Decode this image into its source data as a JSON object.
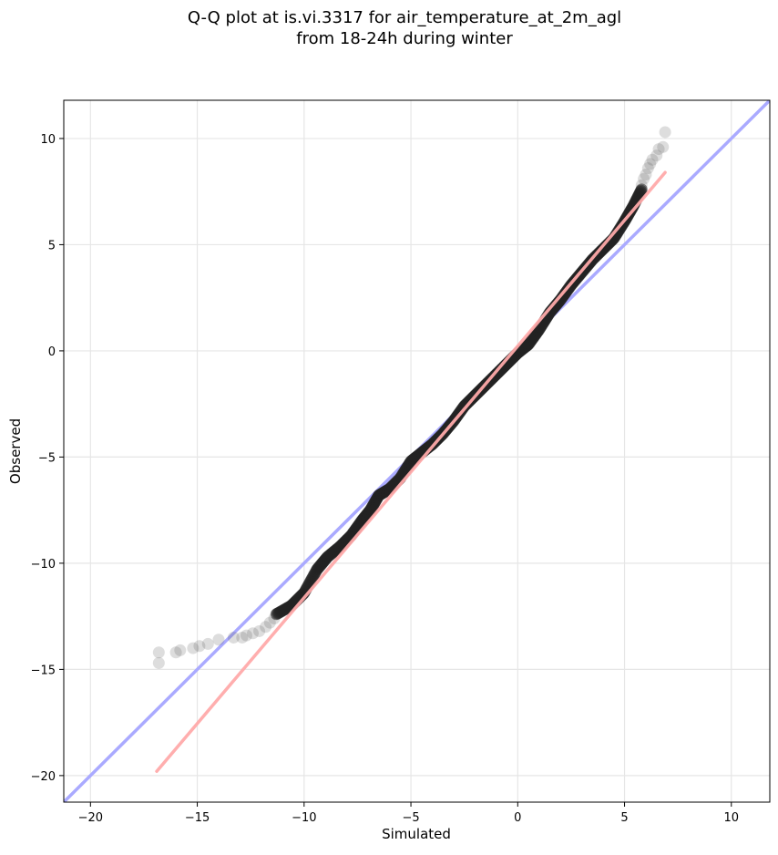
{
  "chart_data": {
    "type": "scatter",
    "title_line1": "Q-Q plot at is.vi.3317 for air_temperature_at_2m_agl",
    "title_line2": "from 18-24h during winter",
    "xlabel": "Simulated",
    "ylabel": "Observed",
    "xlim": [
      -21.25,
      11.8
    ],
    "ylim": [
      -21.25,
      11.8
    ],
    "xticks": [
      {
        "value": -20,
        "label": "−20"
      },
      {
        "value": -15,
        "label": "−15"
      },
      {
        "value": -10,
        "label": "−10"
      },
      {
        "value": -5,
        "label": "−5"
      },
      {
        "value": 0,
        "label": "0"
      },
      {
        "value": 5,
        "label": "5"
      },
      {
        "value": 10,
        "label": "10"
      }
    ],
    "yticks": [
      {
        "value": 10,
        "label": "10"
      },
      {
        "value": 5,
        "label": "5"
      },
      {
        "value": 0,
        "label": "0"
      },
      {
        "value": -5,
        "label": "−5"
      },
      {
        "value": -10,
        "label": "−10"
      },
      {
        "value": -15,
        "label": "−15"
      },
      {
        "value": -20,
        "label": "−20"
      }
    ],
    "grid": true,
    "identity_line": {
      "from": [
        -21.25,
        -21.25
      ],
      "to": [
        11.8,
        11.8
      ],
      "color": "#aaaaff"
    },
    "fit_line": {
      "from": [
        -16.9,
        -19.8
      ],
      "to": [
        6.9,
        8.4
      ],
      "color": "#ffaaaa"
    },
    "point_color": "#555555",
    "sparse_points": {
      "x": [
        6.9,
        6.8,
        6.6,
        6.5,
        6.3,
        6.2,
        6.1,
        6.0,
        5.9,
        5.8,
        -11.4,
        -11.6,
        -11.8,
        -12.1,
        -12.4,
        -12.7,
        -12.9,
        -13.3,
        -14.0,
        -14.5,
        -14.9,
        -15.2,
        -15.8,
        -16.0,
        -16.8,
        -16.8
      ],
      "y": [
        10.3,
        9.6,
        9.5,
        9.2,
        9.0,
        8.8,
        8.6,
        8.3,
        8.1,
        7.8,
        -12.6,
        -12.8,
        -13.0,
        -13.2,
        -13.3,
        -13.4,
        -13.5,
        -13.5,
        -13.6,
        -13.8,
        -13.9,
        -14.0,
        -14.1,
        -14.2,
        -14.2,
        -14.7
      ]
    },
    "quantile_curve": {
      "x": [
        -11.3,
        -10.6,
        -10.0,
        -9.4,
        -8.9,
        -8.3,
        -7.8,
        -7.3,
        -6.9,
        -6.5,
        -6.0,
        -5.5,
        -5.0,
        -4.5,
        -4.0,
        -3.5,
        -3.0,
        -2.5,
        -2.0,
        -1.5,
        -1.0,
        -0.5,
        0.0,
        0.5,
        1.0,
        1.5,
        2.0,
        2.5,
        3.0,
        3.5,
        4.0,
        4.5,
        5.0,
        5.4,
        5.8
      ],
      "y": [
        -12.4,
        -12.0,
        -11.4,
        -10.3,
        -9.7,
        -9.2,
        -8.7,
        -8.0,
        -7.5,
        -6.8,
        -6.5,
        -6.0,
        -5.2,
        -4.8,
        -4.4,
        -3.9,
        -3.3,
        -2.6,
        -2.1,
        -1.6,
        -1.1,
        -0.6,
        -0.1,
        0.3,
        1.0,
        1.8,
        2.4,
        3.1,
        3.7,
        4.3,
        4.8,
        5.3,
        6.1,
        6.8,
        7.6
      ]
    }
  }
}
